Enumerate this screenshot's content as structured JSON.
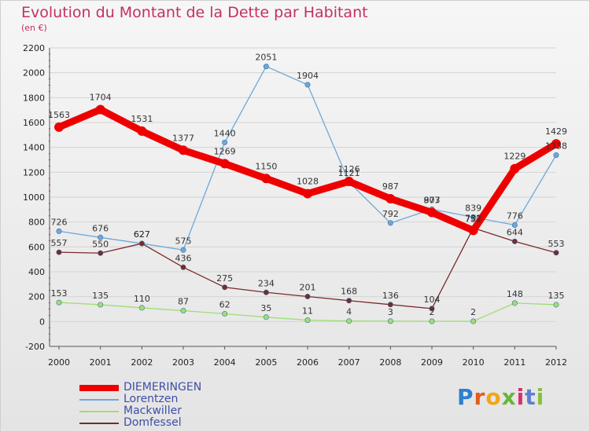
{
  "title": "Evolution du Montant de la Dette par Habitant",
  "subtitle": "(en €)",
  "logo": {
    "letters": [
      "P",
      "r",
      "o",
      "x",
      "i",
      "t",
      "i"
    ],
    "colors": [
      "#2d7fcf",
      "#e35b1c",
      "#f2a516",
      "#69b539",
      "#d8306b",
      "#5f7fd0",
      "#86c03d"
    ]
  },
  "chart_data": {
    "type": "line",
    "x": [
      "2000",
      "2001",
      "2002",
      "2003",
      "2004",
      "2005",
      "2006",
      "2007",
      "2008",
      "2009",
      "2010",
      "2011",
      "2012"
    ],
    "ylim": [
      -200,
      2200
    ],
    "yticks": [
      "-200",
      "0",
      "200",
      "400",
      "600",
      "800",
      "1000",
      "1200",
      "1400",
      "1600",
      "1800",
      "2000",
      "2200"
    ],
    "grid": true,
    "legend_position": "bottom-left",
    "series": [
      {
        "name": "DIEMERINGEN",
        "color": "#ee0000",
        "values": [
          1563,
          1704,
          1531,
          1377,
          1269,
          1150,
          1028,
          1126,
          987,
          877,
          732,
          1229,
          1429
        ],
        "labels": [
          "1563",
          "1704",
          "1531",
          "1377",
          "1269",
          "1150",
          "1028",
          "1126",
          "987",
          "877",
          "732",
          "1229",
          "1429"
        ]
      },
      {
        "name": "Lorentzen",
        "color": "#6fa8d6",
        "values": [
          726,
          676,
          627,
          575,
          1440,
          2051,
          1904,
          1121,
          792,
          903,
          839,
          776,
          1338
        ],
        "labels": [
          "726",
          "676",
          "627",
          "575",
          "1440",
          "2051",
          "1904",
          "1121",
          "792",
          "903",
          "839",
          "776",
          "1338"
        ]
      },
      {
        "name": "Mackwiller",
        "color": "#9fde74",
        "values": [
          153,
          135,
          110,
          87,
          62,
          35,
          11,
          4,
          3,
          2,
          2,
          148,
          135
        ],
        "labels": [
          "153",
          "135",
          "110",
          "87",
          "62",
          "35",
          "11",
          "4",
          "3",
          "2",
          "2",
          "148",
          "135"
        ]
      },
      {
        "name": "Domfessel",
        "color": "#7a2a2a",
        "values": [
          557,
          550,
          627,
          436,
          275,
          234,
          201,
          168,
          136,
          104,
          752,
          644,
          553
        ],
        "labels": [
          "557",
          "550",
          "627",
          "436",
          "275",
          "234",
          "201",
          "168",
          "136",
          "104",
          "752",
          "644",
          "553"
        ]
      }
    ]
  }
}
